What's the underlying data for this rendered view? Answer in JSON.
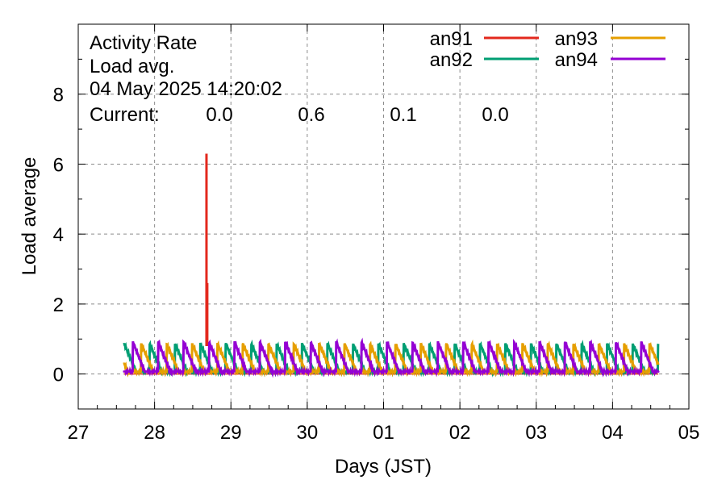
{
  "colors": {
    "an91": "#e3281d",
    "an92": "#009e73",
    "an93": "#e69f00",
    "an94": "#9400d3",
    "grid": "#8c8c8c",
    "axis": "#000000"
  },
  "chart_data": {
    "type": "line",
    "title_lines": [
      "Activity Rate",
      "Load avg.",
      "04 May 2025 14:20:02"
    ],
    "current_label": "Current:",
    "current_values": [
      {
        "series": "an91",
        "value": "0.0"
      },
      {
        "series": "an92",
        "value": "0.6"
      },
      {
        "series": "an93",
        "value": "0.1"
      },
      {
        "series": "an94",
        "value": "0.0"
      }
    ],
    "xlabel": "Days (JST)",
    "ylabel": "Load average",
    "x_ticks": [
      "27",
      "28",
      "29",
      "30",
      "01",
      "02",
      "03",
      "04",
      "05"
    ],
    "xlim": [
      0,
      8
    ],
    "y_ticks": [
      "0",
      "2",
      "4",
      "6",
      "8"
    ],
    "ylim": [
      -1,
      10
    ],
    "grid": true,
    "legend_position": "top-right",
    "legend": [
      "an91",
      "an92",
      "an93",
      "an94"
    ],
    "data_start": 0.6,
    "data_end": 7.6,
    "cycle_days": 0.333,
    "series": [
      {
        "name": "an91",
        "baseline": 0.0,
        "spikes": [
          {
            "x": 1.68,
            "y": 6.3
          },
          {
            "x": 1.69,
            "y": 2.6
          }
        ]
      },
      {
        "name": "an92",
        "peak": 0.85,
        "phase": 0.0
      },
      {
        "name": "an93",
        "peak": 0.85,
        "phase": 0.33
      },
      {
        "name": "an94",
        "peak": 0.9,
        "phase": 0.66
      }
    ]
  }
}
